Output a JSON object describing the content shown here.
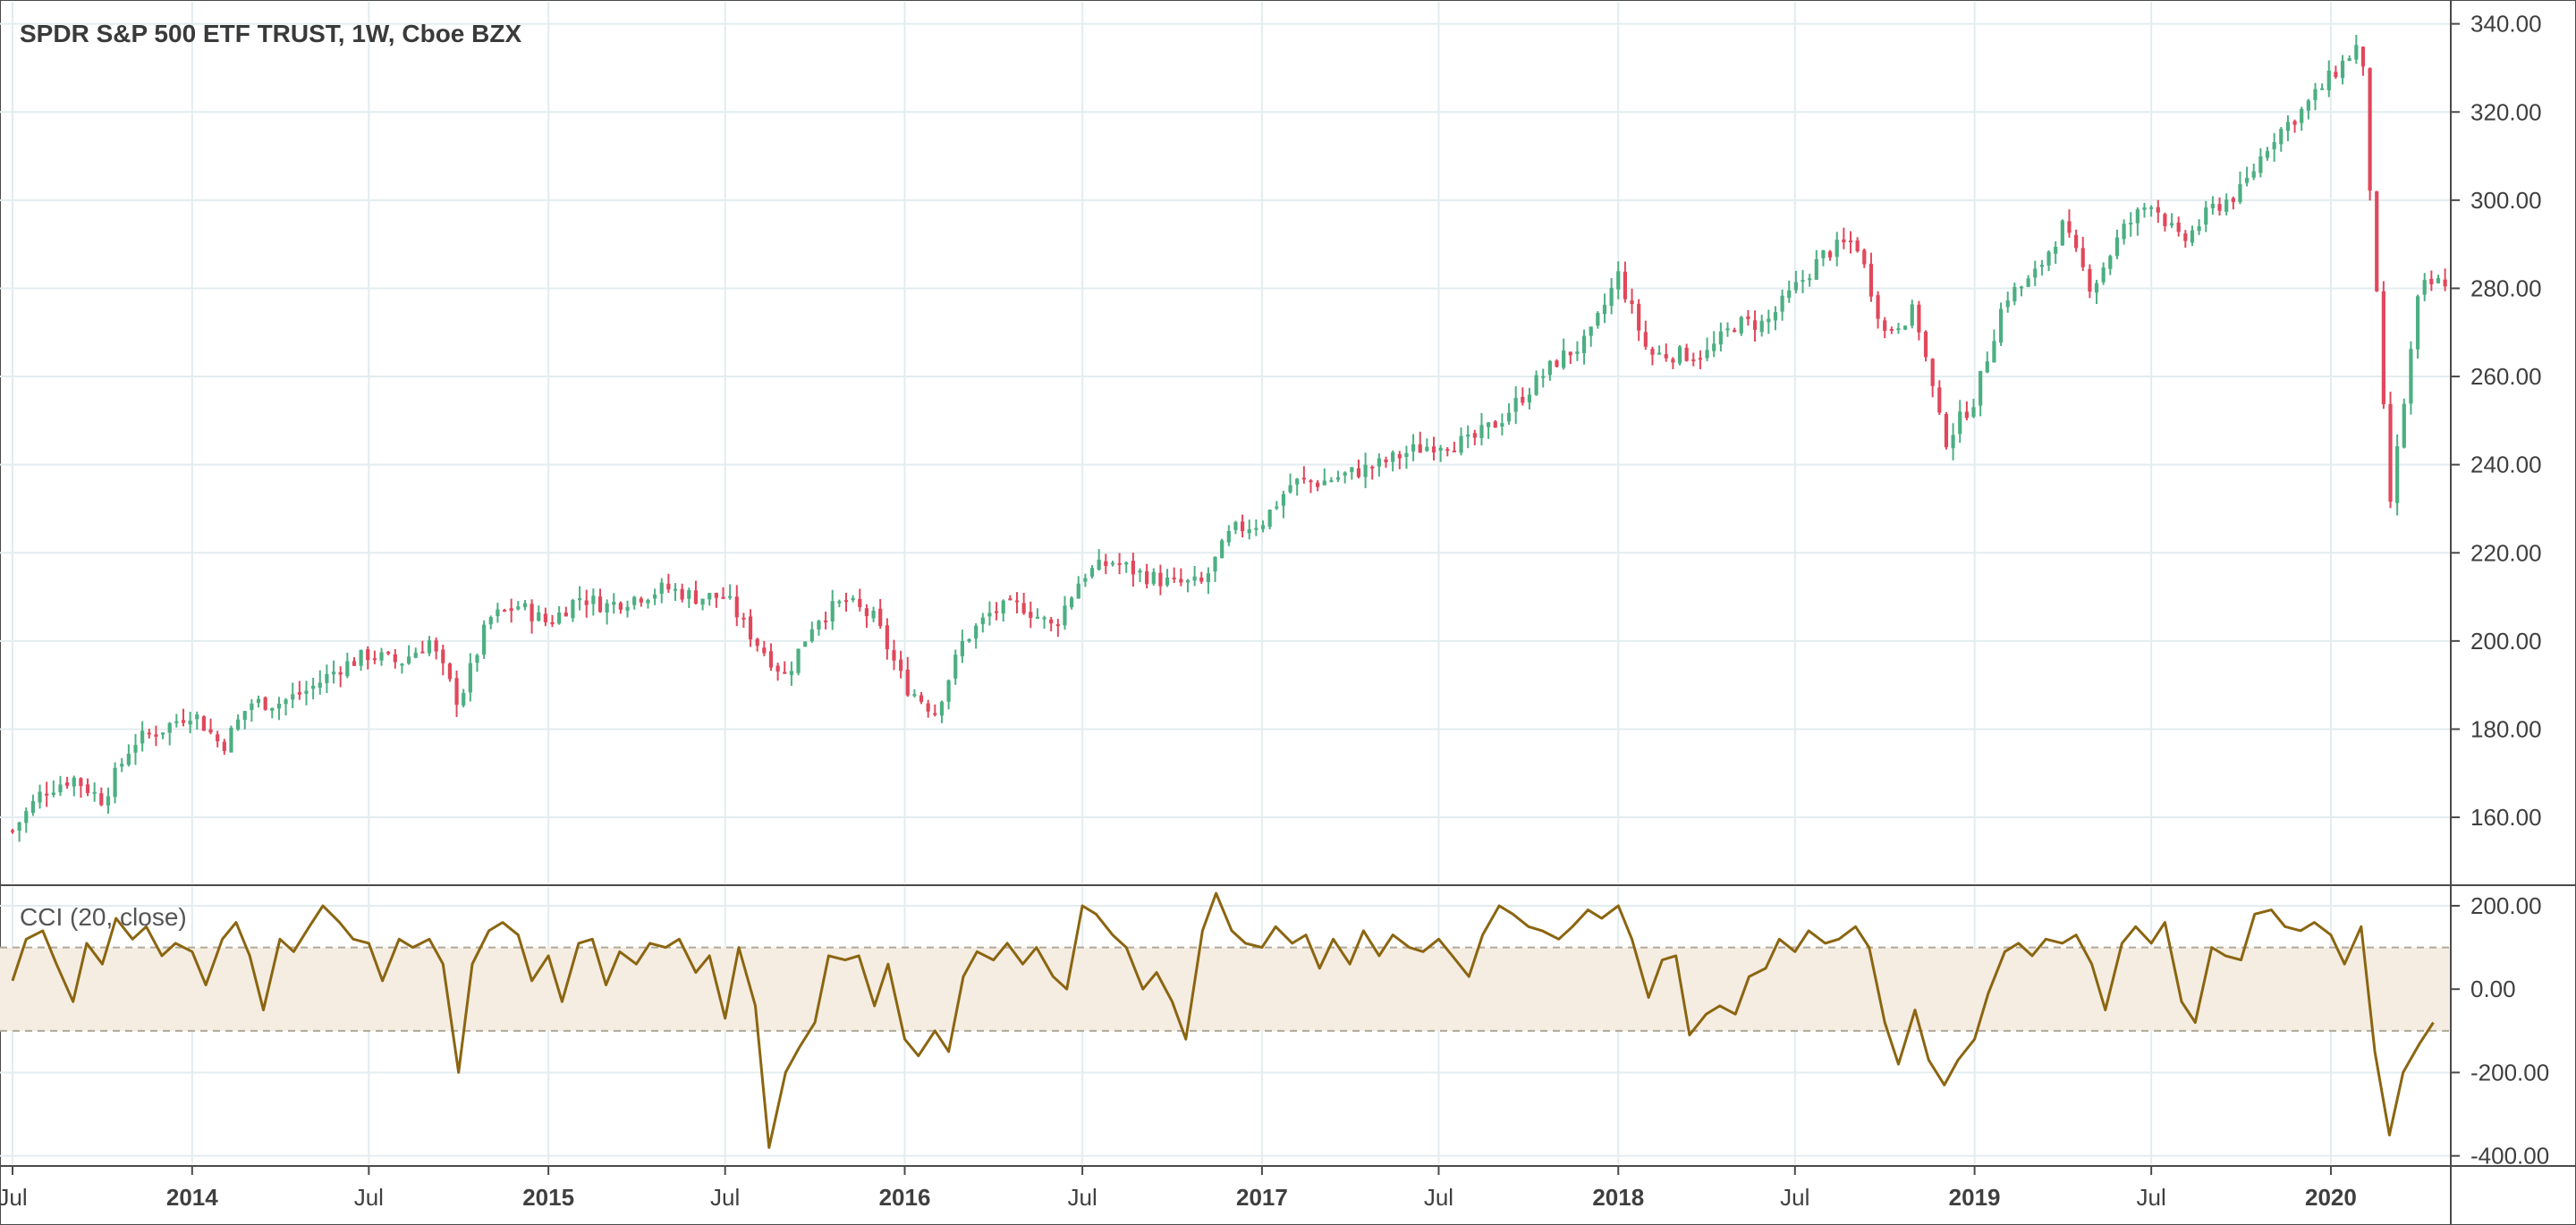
{
  "header": {
    "symbol": "SPDR S&P 500 ETF TRUST, 1W, Cboe BZX",
    "indicator": "CCI (20, close)"
  },
  "colors": {
    "up": "#4caf82",
    "down": "#e0485c",
    "cci_line": "#8b6510",
    "band_fill": "#f5ede2",
    "grid": "#e3ecef"
  },
  "chart_data": [
    {
      "type": "candlestick",
      "title": "SPDR S&P 500 ETF TRUST, 1W, Cboe BZX",
      "ylim": [
        145,
        345
      ],
      "y_ticks": [
        160,
        180,
        200,
        220,
        240,
        260,
        280,
        300,
        320,
        340
      ],
      "y_tick_labels": [
        "160.00",
        "180.00",
        "200.00",
        "220.00",
        "240.00",
        "260.00",
        "280.00",
        "300.00",
        "320.00",
        "340.00"
      ],
      "x_ticks": [
        {
          "date": "2013-07-01",
          "label": "Jul",
          "major": false
        },
        {
          "date": "2014-01-01",
          "label": "2014",
          "major": true
        },
        {
          "date": "2014-07-01",
          "label": "Jul",
          "major": false
        },
        {
          "date": "2015-01-01",
          "label": "2015",
          "major": true
        },
        {
          "date": "2015-07-01",
          "label": "Jul",
          "major": false
        },
        {
          "date": "2016-01-01",
          "label": "2016",
          "major": true
        },
        {
          "date": "2016-07-01",
          "label": "Jul",
          "major": false
        },
        {
          "date": "2017-01-01",
          "label": "2017",
          "major": true
        },
        {
          "date": "2017-07-01",
          "label": "Jul",
          "major": false
        },
        {
          "date": "2018-01-01",
          "label": "2018",
          "major": true
        },
        {
          "date": "2018-07-01",
          "label": "Jul",
          "major": false
        },
        {
          "date": "2019-01-01",
          "label": "2019",
          "major": true
        },
        {
          "date": "2019-07-01",
          "label": "Jul",
          "major": false
        },
        {
          "date": "2020-01-01",
          "label": "2020",
          "major": true
        }
      ],
      "x_range": [
        "2013-07-01",
        "2020-05-01"
      ],
      "grid": true,
      "close_anchors": [
        [
          "2013-07-01",
          157
        ],
        [
          "2013-08-01",
          166
        ],
        [
          "2013-09-01",
          169
        ],
        [
          "2013-10-01",
          164
        ],
        [
          "2013-11-01",
          177
        ],
        [
          "2013-12-01",
          180
        ],
        [
          "2014-01-01",
          184
        ],
        [
          "2014-02-01",
          176
        ],
        [
          "2014-03-01",
          186
        ],
        [
          "2014-04-01",
          186
        ],
        [
          "2014-05-01",
          189
        ],
        [
          "2014-06-01",
          194
        ],
        [
          "2014-07-01",
          197
        ],
        [
          "2014-08-01",
          195
        ],
        [
          "2014-09-01",
          200
        ],
        [
          "2014-10-01",
          186
        ],
        [
          "2014-11-01",
          205
        ],
        [
          "2014-12-01",
          208
        ],
        [
          "2015-01-01",
          204
        ],
        [
          "2015-02-01",
          210
        ],
        [
          "2015-03-01",
          208
        ],
        [
          "2015-04-01",
          210
        ],
        [
          "2015-05-01",
          212
        ],
        [
          "2015-06-01",
          210
        ],
        [
          "2015-07-01",
          210
        ],
        [
          "2015-08-01",
          200
        ],
        [
          "2015-09-01",
          192
        ],
        [
          "2015-10-01",
          205
        ],
        [
          "2015-11-01",
          209
        ],
        [
          "2015-12-01",
          205
        ],
        [
          "2016-01-01",
          190
        ],
        [
          "2016-02-01",
          184
        ],
        [
          "2016-03-01",
          200
        ],
        [
          "2016-04-01",
          207
        ],
        [
          "2016-05-01",
          208
        ],
        [
          "2016-06-01",
          203
        ],
        [
          "2016-07-01",
          215
        ],
        [
          "2016-08-01",
          218
        ],
        [
          "2016-09-01",
          215
        ],
        [
          "2016-10-01",
          213
        ],
        [
          "2016-11-01",
          213
        ],
        [
          "2016-12-01",
          225
        ],
        [
          "2017-01-01",
          227
        ],
        [
          "2017-02-01",
          236
        ],
        [
          "2017-03-01",
          236
        ],
        [
          "2017-04-01",
          238
        ],
        [
          "2017-05-01",
          240
        ],
        [
          "2017-06-01",
          243
        ],
        [
          "2017-07-01",
          245
        ],
        [
          "2017-08-01",
          245
        ],
        [
          "2017-09-01",
          250
        ],
        [
          "2017-10-01",
          257
        ],
        [
          "2017-11-01",
          264
        ],
        [
          "2017-12-01",
          268
        ],
        [
          "2018-01-01",
          283
        ],
        [
          "2018-02-01",
          265
        ],
        [
          "2018-03-01",
          265
        ],
        [
          "2018-04-01",
          265
        ],
        [
          "2018-05-01",
          272
        ],
        [
          "2018-06-01",
          272
        ],
        [
          "2018-07-01",
          280
        ],
        [
          "2018-08-01",
          288
        ],
        [
          "2018-09-01",
          291
        ],
        [
          "2018-10-01",
          270
        ],
        [
          "2018-11-01",
          275
        ],
        [
          "2018-12-01",
          245
        ],
        [
          "2019-01-01",
          255
        ],
        [
          "2019-02-01",
          278
        ],
        [
          "2019-03-01",
          282
        ],
        [
          "2019-04-01",
          294
        ],
        [
          "2019-05-01",
          280
        ],
        [
          "2019-06-01",
          293
        ],
        [
          "2019-07-01",
          300
        ],
        [
          "2019-08-01",
          290
        ],
        [
          "2019-09-01",
          298
        ],
        [
          "2019-10-01",
          302
        ],
        [
          "2019-11-01",
          314
        ],
        [
          "2019-12-01",
          320
        ],
        [
          "2020-01-01",
          328
        ],
        [
          "2020-02-01",
          336
        ],
        [
          "2020-03-01",
          230
        ],
        [
          "2020-04-01",
          280
        ],
        [
          "2020-05-01",
          282
        ]
      ]
    },
    {
      "type": "line",
      "title": "CCI (20, close)",
      "ylim": [
        -420,
        245
      ],
      "y_ticks": [
        -400,
        -200,
        0,
        200
      ],
      "y_tick_labels": [
        "-400.00",
        "-200.00",
        "0.00",
        "200.00"
      ],
      "band": [
        -100,
        100
      ],
      "series": [
        {
          "points": [
            [
              "2013-07-01",
              20
            ],
            [
              "2013-07-15",
              120
            ],
            [
              "2013-08-01",
              140
            ],
            [
              "2013-08-15",
              60
            ],
            [
              "2013-09-01",
              -30
            ],
            [
              "2013-09-15",
              110
            ],
            [
              "2013-10-01",
              60
            ],
            [
              "2013-10-15",
              170
            ],
            [
              "2013-11-01",
              120
            ],
            [
              "2013-11-15",
              150
            ],
            [
              "2013-12-01",
              80
            ],
            [
              "2013-12-15",
              110
            ],
            [
              "2014-01-01",
              90
            ],
            [
              "2014-01-15",
              10
            ],
            [
              "2014-02-01",
              120
            ],
            [
              "2014-02-15",
              160
            ],
            [
              "2014-03-01",
              80
            ],
            [
              "2014-03-15",
              -50
            ],
            [
              "2014-04-01",
              120
            ],
            [
              "2014-04-15",
              90
            ],
            [
              "2014-05-01",
              150
            ],
            [
              "2014-05-15",
              200
            ],
            [
              "2014-06-01",
              160
            ],
            [
              "2014-06-15",
              120
            ],
            [
              "2014-07-01",
              110
            ],
            [
              "2014-07-15",
              20
            ],
            [
              "2014-08-01",
              120
            ],
            [
              "2014-08-15",
              100
            ],
            [
              "2014-09-01",
              120
            ],
            [
              "2014-09-15",
              60
            ],
            [
              "2014-10-01",
              -200
            ],
            [
              "2014-10-15",
              60
            ],
            [
              "2014-11-01",
              140
            ],
            [
              "2014-11-15",
              160
            ],
            [
              "2014-12-01",
              130
            ],
            [
              "2014-12-15",
              20
            ],
            [
              "2015-01-01",
              80
            ],
            [
              "2015-01-15",
              -30
            ],
            [
              "2015-02-01",
              110
            ],
            [
              "2015-02-15",
              120
            ],
            [
              "2015-03-01",
              10
            ],
            [
              "2015-03-15",
              90
            ],
            [
              "2015-04-01",
              60
            ],
            [
              "2015-04-15",
              110
            ],
            [
              "2015-05-01",
              100
            ],
            [
              "2015-05-15",
              120
            ],
            [
              "2015-06-01",
              40
            ],
            [
              "2015-06-15",
              80
            ],
            [
              "2015-07-01",
              -70
            ],
            [
              "2015-07-15",
              100
            ],
            [
              "2015-08-01",
              -40
            ],
            [
              "2015-08-15",
              -380
            ],
            [
              "2015-09-01",
              -200
            ],
            [
              "2015-09-15",
              -140
            ],
            [
              "2015-10-01",
              -80
            ],
            [
              "2015-10-15",
              80
            ],
            [
              "2015-11-01",
              70
            ],
            [
              "2015-11-15",
              80
            ],
            [
              "2015-12-01",
              -40
            ],
            [
              "2015-12-15",
              60
            ],
            [
              "2016-01-01",
              -120
            ],
            [
              "2016-01-15",
              -160
            ],
            [
              "2016-02-01",
              -100
            ],
            [
              "2016-02-15",
              -150
            ],
            [
              "2016-03-01",
              30
            ],
            [
              "2016-03-15",
              90
            ],
            [
              "2016-04-01",
              70
            ],
            [
              "2016-04-15",
              110
            ],
            [
              "2016-05-01",
              60
            ],
            [
              "2016-05-15",
              100
            ],
            [
              "2016-06-01",
              30
            ],
            [
              "2016-06-15",
              0
            ],
            [
              "2016-07-01",
              200
            ],
            [
              "2016-07-15",
              180
            ],
            [
              "2016-08-01",
              130
            ],
            [
              "2016-08-15",
              100
            ],
            [
              "2016-09-01",
              0
            ],
            [
              "2016-09-15",
              40
            ],
            [
              "2016-10-01",
              -30
            ],
            [
              "2016-10-15",
              -120
            ],
            [
              "2016-11-01",
              140
            ],
            [
              "2016-11-15",
              230
            ],
            [
              "2016-12-01",
              140
            ],
            [
              "2016-12-15",
              110
            ],
            [
              "2017-01-01",
              100
            ],
            [
              "2017-01-15",
              150
            ],
            [
              "2017-02-01",
              110
            ],
            [
              "2017-02-15",
              130
            ],
            [
              "2017-03-01",
              50
            ],
            [
              "2017-03-15",
              120
            ],
            [
              "2017-04-01",
              60
            ],
            [
              "2017-04-15",
              140
            ],
            [
              "2017-05-01",
              80
            ],
            [
              "2017-05-15",
              130
            ],
            [
              "2017-06-01",
              100
            ],
            [
              "2017-06-15",
              90
            ],
            [
              "2017-07-01",
              120
            ],
            [
              "2017-07-15",
              80
            ],
            [
              "2017-08-01",
              30
            ],
            [
              "2017-08-15",
              130
            ],
            [
              "2017-09-01",
              200
            ],
            [
              "2017-09-15",
              180
            ],
            [
              "2017-10-01",
              150
            ],
            [
              "2017-10-15",
              140
            ],
            [
              "2017-11-01",
              120
            ],
            [
              "2017-11-15",
              150
            ],
            [
              "2017-12-01",
              190
            ],
            [
              "2017-12-15",
              170
            ],
            [
              "2018-01-01",
              200
            ],
            [
              "2018-01-15",
              120
            ],
            [
              "2018-02-01",
              -20
            ],
            [
              "2018-02-15",
              70
            ],
            [
              "2018-03-01",
              80
            ],
            [
              "2018-03-15",
              -110
            ],
            [
              "2018-04-01",
              -60
            ],
            [
              "2018-04-15",
              -40
            ],
            [
              "2018-05-01",
              -60
            ],
            [
              "2018-05-15",
              30
            ],
            [
              "2018-06-01",
              50
            ],
            [
              "2018-06-15",
              120
            ],
            [
              "2018-07-01",
              90
            ],
            [
              "2018-07-15",
              140
            ],
            [
              "2018-08-01",
              110
            ],
            [
              "2018-08-15",
              120
            ],
            [
              "2018-09-01",
              150
            ],
            [
              "2018-09-15",
              100
            ],
            [
              "2018-10-01",
              -80
            ],
            [
              "2018-10-15",
              -180
            ],
            [
              "2018-11-01",
              -50
            ],
            [
              "2018-11-15",
              -170
            ],
            [
              "2018-12-01",
              -230
            ],
            [
              "2018-12-15",
              -170
            ],
            [
              "2019-01-01",
              -120
            ],
            [
              "2019-01-15",
              -10
            ],
            [
              "2019-02-01",
              90
            ],
            [
              "2019-02-15",
              110
            ],
            [
              "2019-03-01",
              80
            ],
            [
              "2019-03-15",
              120
            ],
            [
              "2019-04-01",
              110
            ],
            [
              "2019-04-15",
              130
            ],
            [
              "2019-05-01",
              60
            ],
            [
              "2019-05-15",
              -50
            ],
            [
              "2019-06-01",
              110
            ],
            [
              "2019-06-15",
              150
            ],
            [
              "2019-07-01",
              110
            ],
            [
              "2019-07-15",
              160
            ],
            [
              "2019-08-01",
              -30
            ],
            [
              "2019-08-15",
              -80
            ],
            [
              "2019-09-01",
              100
            ],
            [
              "2019-09-15",
              80
            ],
            [
              "2019-10-01",
              70
            ],
            [
              "2019-10-15",
              180
            ],
            [
              "2019-11-01",
              190
            ],
            [
              "2019-11-15",
              150
            ],
            [
              "2019-12-01",
              140
            ],
            [
              "2019-12-15",
              160
            ],
            [
              "2020-01-01",
              130
            ],
            [
              "2020-01-15",
              60
            ],
            [
              "2020-02-01",
              150
            ],
            [
              "2020-02-15",
              -150
            ],
            [
              "2020-03-01",
              -350
            ],
            [
              "2020-03-15",
              -200
            ],
            [
              "2020-04-01",
              -130
            ],
            [
              "2020-04-15",
              -80
            ]
          ]
        }
      ]
    }
  ]
}
